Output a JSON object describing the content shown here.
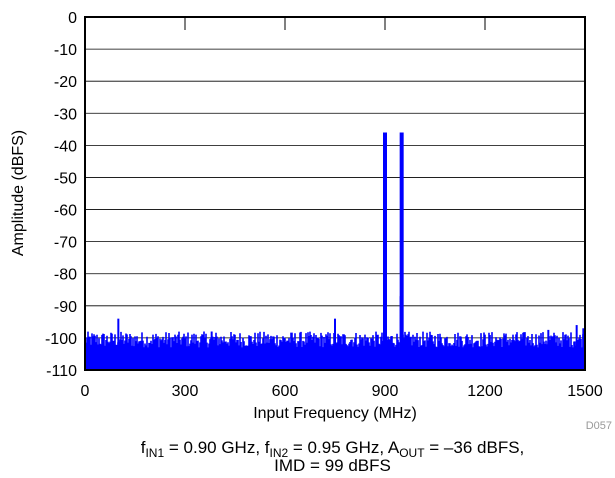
{
  "chart_data": {
    "type": "line",
    "xlabel": "Input Frequency (MHz)",
    "ylabel": "Amplitude (dBFS)",
    "xlim": [
      0,
      1500
    ],
    "ylim": [
      -110,
      0
    ],
    "xticks": [
      0,
      300,
      600,
      900,
      1200,
      1500
    ],
    "yticks": [
      0,
      -10,
      -20,
      -30,
      -40,
      -50,
      -60,
      -70,
      -80,
      -90,
      -100,
      -110
    ],
    "grid": "horizontal",
    "series_color": "#0000ff",
    "noise_floor_range": [
      -103,
      -98
    ],
    "series": [
      {
        "x": [
          0,
          100,
          380,
          750,
          900,
          950,
          1390,
          1475,
          1495
        ],
        "y": [
          -98,
          -94,
          -98,
          -94,
          -36,
          -36,
          -97.5,
          -96,
          -97
        ]
      }
    ],
    "notable_points": [
      {
        "x": 947,
        "y": -87
      }
    ],
    "watermark": "D057"
  },
  "caption": {
    "line1": {
      "p1": "f",
      "s1": "IN1",
      "p2": " = 0.90 GHz, f",
      "s2": "IN2",
      "p3": " = 0.95 GHz, A",
      "s3": "OUT",
      "p4": " = –36 dBFS,"
    },
    "line2": "IMD = 99 dBFS"
  }
}
